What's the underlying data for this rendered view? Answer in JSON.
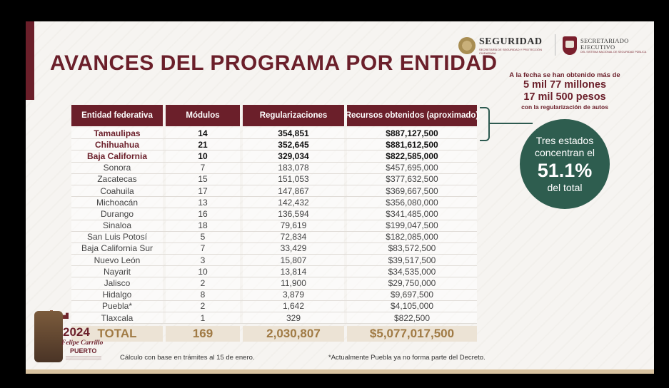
{
  "title": "AVANCES DEL PROGRAMA POR ENTIDAD",
  "logos": {
    "seguridad": "SEGURIDAD",
    "seguridad_sub": "SECRETARÍA DE SEGURIDAD Y PROTECCIÓN CIUDADANA",
    "sesnsp_line1": "SECRETARIADO",
    "sesnsp_line2": "EJECUTIVO",
    "sesnsp_sub": "DEL SISTEMA NACIONAL DE SEGURIDAD PÚBLICA",
    "puerto_year": "2024",
    "puerto_name": "Felipe Carrillo",
    "puerto_city": "PUERTO"
  },
  "table": {
    "headers": [
      "Entidad federativa",
      "Módulos",
      "Regularizaciones",
      "Recursos obtenidos (aproximado)"
    ],
    "rows": [
      {
        "entidad": "Tamaulipas",
        "modulos": "14",
        "regularizaciones": "354,851",
        "recursos": "$887,127,500",
        "highlight": true
      },
      {
        "entidad": "Chihuahua",
        "modulos": "21",
        "regularizaciones": "352,645",
        "recursos": "$881,612,500",
        "highlight": true
      },
      {
        "entidad": "Baja California",
        "modulos": "10",
        "regularizaciones": "329,034",
        "recursos": "$822,585,000",
        "highlight": true
      },
      {
        "entidad": "Sonora",
        "modulos": "7",
        "regularizaciones": "183,078",
        "recursos": "$457,695,000"
      },
      {
        "entidad": "Zacatecas",
        "modulos": "15",
        "regularizaciones": "151,053",
        "recursos": "$377,632,500"
      },
      {
        "entidad": "Coahuila",
        "modulos": "17",
        "regularizaciones": "147,867",
        "recursos": "$369,667,500"
      },
      {
        "entidad": "Michoacán",
        "modulos": "13",
        "regularizaciones": "142,432",
        "recursos": "$356,080,000"
      },
      {
        "entidad": "Durango",
        "modulos": "16",
        "regularizaciones": "136,594",
        "recursos": "$341,485,000"
      },
      {
        "entidad": "Sinaloa",
        "modulos": "18",
        "regularizaciones": "79,619",
        "recursos": "$199,047,500"
      },
      {
        "entidad": "San Luis Potosí",
        "modulos": "5",
        "regularizaciones": "72,834",
        "recursos": "$182,085,000"
      },
      {
        "entidad": "Baja California Sur",
        "modulos": "7",
        "regularizaciones": "33,429",
        "recursos": "$83,572,500"
      },
      {
        "entidad": "Nuevo León",
        "modulos": "3",
        "regularizaciones": "15,807",
        "recursos": "$39,517,500"
      },
      {
        "entidad": "Nayarit",
        "modulos": "10",
        "regularizaciones": "13,814",
        "recursos": "$34,535,000"
      },
      {
        "entidad": "Jalisco",
        "modulos": "2",
        "regularizaciones": "11,900",
        "recursos": "$29,750,000"
      },
      {
        "entidad": "Hidalgo",
        "modulos": "8",
        "regularizaciones": "3,879",
        "recursos": "$9,697,500"
      },
      {
        "entidad": "Puebla*",
        "modulos": "2",
        "regularizaciones": "1,642",
        "recursos": "$4,105,000"
      },
      {
        "entidad": "Tlaxcala",
        "modulos": "1",
        "regularizaciones": "329",
        "recursos": "$822,500"
      }
    ],
    "total": {
      "label": "TOTAL",
      "modulos": "169",
      "regularizaciones": "2,030,807",
      "recursos": "$5,077,017,500"
    }
  },
  "info": {
    "line1": "A la fecha se han obtenido más de",
    "line2": "5 mil 77 millones",
    "line3": "17 mil 500 pesos",
    "line4": "con la regularización de autos"
  },
  "circle": {
    "text1": "Tres estados concentran el",
    "percent": "51.1%",
    "text2": "del total"
  },
  "footnotes": {
    "left": "Cálculo con base en trámites al 15 de enero.",
    "right": "*Actualmente Puebla ya no forma parte del Decreto."
  },
  "colors": {
    "primary": "#6b1f2a",
    "accent_green": "#2e5d4f",
    "gold": "#a07a44"
  }
}
